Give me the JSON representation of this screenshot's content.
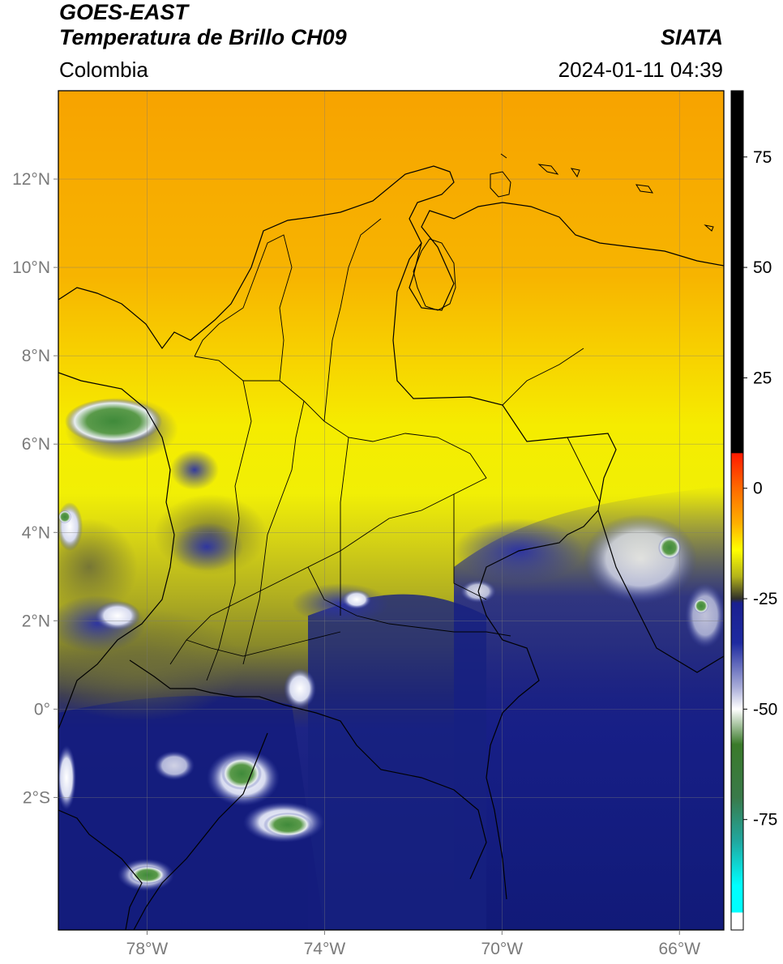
{
  "header": {
    "satellite": "GOES-EAST",
    "product": "Temperatura de Brillo CH09",
    "organization": "SIATA",
    "region": "Colombia",
    "datetime": "2024-01-11 04:39"
  },
  "map": {
    "lon_range": [
      -80,
      -65
    ],
    "lat_range": [
      -5,
      14
    ],
    "lon_ticks": [
      {
        "value": -78,
        "label": "78°W"
      },
      {
        "value": -74,
        "label": "74°W"
      },
      {
        "value": -70,
        "label": "70°W"
      },
      {
        "value": -66,
        "label": "66°W"
      }
    ],
    "lat_ticks": [
      {
        "value": 12,
        "label": "12°N"
      },
      {
        "value": 10,
        "label": "10°N"
      },
      {
        "value": 8,
        "label": "8°N"
      },
      {
        "value": 6,
        "label": "6°N"
      },
      {
        "value": 4,
        "label": "4°N"
      },
      {
        "value": 2,
        "label": "2°N"
      },
      {
        "value": 0,
        "label": "0°"
      },
      {
        "value": -2,
        "label": "2°S"
      }
    ],
    "grid": true,
    "colors": {
      "warm_north": "#f7a800",
      "mid_yellow": "#f6ef00",
      "olive": "#9a9a1a",
      "cold_blue": "#1a2185",
      "deep_blue": "#0d1474",
      "white_cloud": "#e8ecf5",
      "green_core": "#4a8c3a"
    }
  },
  "colorbar": {
    "range": [
      -100,
      90
    ],
    "ticks": [
      {
        "value": 75,
        "label": "75"
      },
      {
        "value": 50,
        "label": "50"
      },
      {
        "value": 25,
        "label": "25"
      },
      {
        "value": 0,
        "label": "0"
      },
      {
        "value": -25,
        "label": "-25"
      },
      {
        "value": -50,
        "label": "-50"
      },
      {
        "value": -75,
        "label": "-75"
      }
    ],
    "stops": [
      {
        "value": 90,
        "color": "#000000"
      },
      {
        "value": 8,
        "color": "#000000"
      },
      {
        "value": 7.9,
        "color": "#ff1a00"
      },
      {
        "value": 0,
        "color": "#ff6a00"
      },
      {
        "value": -8,
        "color": "#ffb000"
      },
      {
        "value": -14,
        "color": "#ffff00"
      },
      {
        "value": -20,
        "color": "#b3b31a"
      },
      {
        "value": -25,
        "color": "#30302a"
      },
      {
        "value": -26,
        "color": "#1a2090"
      },
      {
        "value": -35,
        "color": "#1e2aa0"
      },
      {
        "value": -45,
        "color": "#a8acd8"
      },
      {
        "value": -50,
        "color": "#ffffff"
      },
      {
        "value": -58,
        "color": "#3a7a2a"
      },
      {
        "value": -70,
        "color": "#3a7a4a"
      },
      {
        "value": -80,
        "color": "#20a8a0"
      },
      {
        "value": -90,
        "color": "#00ffff"
      },
      {
        "value": -96,
        "color": "#00ffff"
      },
      {
        "value": -96.1,
        "color": "#ffffff"
      },
      {
        "value": -100,
        "color": "#ffffff"
      }
    ]
  }
}
